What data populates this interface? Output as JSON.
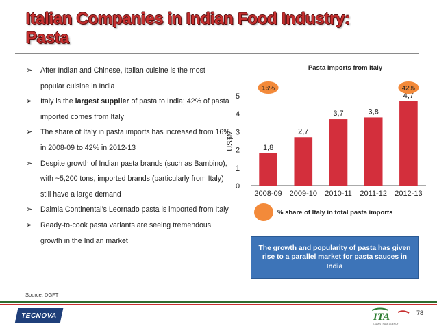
{
  "slide": {
    "title_line1": "Italian Companies in Indian Food Industry:",
    "title_line2": "Pasta",
    "bullets": [
      {
        "pre": "After Indian and Chinese, Italian cuisine is the most popular cuisine in India",
        "bold": "",
        "post": ""
      },
      {
        "pre": "Italy is the ",
        "bold": "largest supplier",
        "post": " of pasta to India; 42% of pasta imported comes from Italy"
      },
      {
        "pre": "The share of Italy in pasta imports has increased from 16% in 2008-09 to 42% in 2012-13",
        "bold": "",
        "post": ""
      },
      {
        "pre": "Despite growth of Indian pasta brands (such as Bambino), with ~5,200 tons, imported brands (particularly from Italy) still have a large demand",
        "bold": "",
        "post": ""
      },
      {
        "pre": "Dalmia Continental’s Leornado pasta is imported from Italy",
        "bold": "",
        "post": ""
      },
      {
        "pre": "Ready-to-cook pasta variants are seeing tremendous growth in the Indian market",
        "bold": "",
        "post": ""
      }
    ],
    "source": "Source: DGFT",
    "legend_label": "% share of Italy in total pasta imports",
    "callout": "The growth and popularity of pasta has given rise to a parallel market for pasta sauces in India",
    "logo_left": "TECNOVA",
    "logo_right_mark": "ITA",
    "logo_right_sub": "ITALIAN TRADE AGENCY",
    "page_number": "78"
  },
  "chart_data": {
    "type": "bar",
    "title": "Pasta imports from Italy",
    "categories": [
      "2008-09",
      "2009-10",
      "2010-11",
      "2011-12",
      "2012-13"
    ],
    "values": [
      1.8,
      2.7,
      3.7,
      3.8,
      4.7
    ],
    "value_labels": [
      "1,8",
      "2,7",
      "3,7",
      "3,8",
      "4,7"
    ],
    "ylabel": "US$M",
    "ylim": [
      0,
      5
    ],
    "yticks": [
      0,
      1,
      2,
      3,
      4,
      5
    ],
    "annotations": [
      {
        "category": "2008-09",
        "text": "16%"
      },
      {
        "category": "2012-13",
        "text": "42%"
      }
    ],
    "colors": {
      "bar": "#d32f3c",
      "badge": "#f38a3a"
    }
  }
}
